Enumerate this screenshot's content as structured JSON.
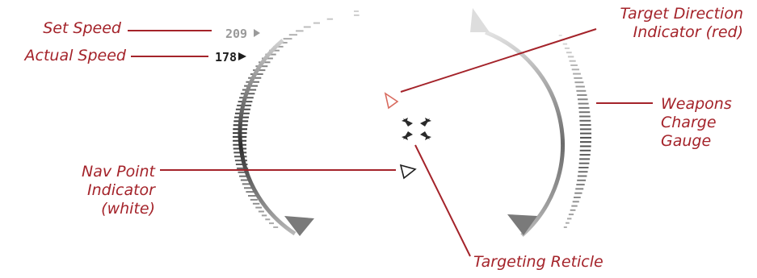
{
  "labels": {
    "set_speed": "Set Speed",
    "actual_speed": "Actual Speed",
    "target_direction_line1": "Target Direction",
    "target_direction_line2": "Indicator (red)",
    "weapons_line1": "Weapons",
    "weapons_line2": "Charge",
    "weapons_line3": "Gauge",
    "nav_point_line1": "Nav Point",
    "nav_point_line2": "Indicator",
    "nav_point_line3": "(white)",
    "targeting_reticle": "Targeting Reticle"
  },
  "readouts": {
    "set_speed_value": "209",
    "actual_speed_value": "178"
  },
  "colors": {
    "callout": "#a4232a",
    "gauge_dark": "#2e2e2e",
    "gauge_light": "#d2d2d2",
    "target_indicator": "#d86a5e",
    "set_speed_text": "#9a9a9a",
    "actual_speed_text": "#1e1e1e"
  },
  "icons": {
    "target_direction": "triangle-arrow-icon",
    "nav_point": "triangle-arrow-icon",
    "reticle": "four-arrow-reticle-icon"
  }
}
